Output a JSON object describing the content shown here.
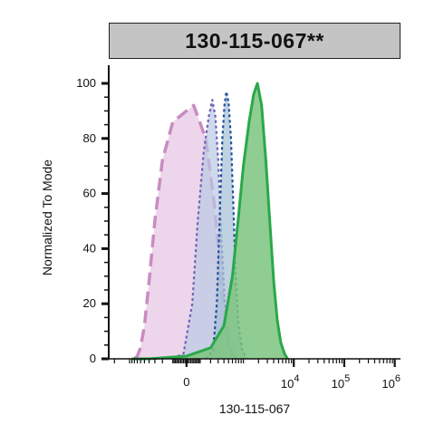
{
  "title": "130-115-067**",
  "chart_data": {
    "type": "area",
    "xlabel": "130-115-067",
    "ylabel": "Normalized To Mode",
    "ylim": [
      0,
      100
    ],
    "yticks": [
      0,
      20,
      40,
      60,
      80,
      100
    ],
    "x_scale": "biexponential",
    "xticks": [
      {
        "value": 0,
        "label": "0"
      },
      {
        "value": 10000,
        "base": "10",
        "exp": "4"
      },
      {
        "value": 100000,
        "base": "10",
        "exp": "5"
      },
      {
        "value": 1000000,
        "base": "10",
        "exp": "6"
      }
    ],
    "grid": false,
    "series": [
      {
        "style": "filled-dashed",
        "fill": "#e6c5e2",
        "stroke": "#c98bc2",
        "dash": "long",
        "points": [
          [
            -800,
            0
          ],
          [
            -700,
            1
          ],
          [
            -600,
            4
          ],
          [
            -500,
            12
          ],
          [
            -400,
            28
          ],
          [
            -300,
            50
          ],
          [
            -200,
            72
          ],
          [
            -100,
            86
          ],
          [
            0,
            90
          ],
          [
            50,
            92
          ],
          [
            150,
            80
          ],
          [
            250,
            55
          ],
          [
            350,
            28
          ],
          [
            450,
            10
          ],
          [
            600,
            2
          ],
          [
            800,
            0
          ]
        ]
      },
      {
        "style": "filled-dotted",
        "fill": "#b9c9e2",
        "stroke": "#6f62b5",
        "dash": "dot",
        "points": [
          [
            -100,
            0
          ],
          [
            -20,
            2
          ],
          [
            40,
            20
          ],
          [
            80,
            50
          ],
          [
            130,
            75
          ],
          [
            180,
            88
          ],
          [
            220,
            94
          ],
          [
            260,
            88
          ],
          [
            300,
            72
          ],
          [
            350,
            45
          ],
          [
            420,
            20
          ],
          [
            500,
            6
          ],
          [
            600,
            1
          ],
          [
            700,
            0
          ]
        ]
      },
      {
        "style": "filled-dotted",
        "fill": "#a4bfd6",
        "stroke": "#1e4f9a",
        "dash": "dot",
        "points": [
          [
            150,
            0
          ],
          [
            230,
            3
          ],
          [
            280,
            20
          ],
          [
            330,
            55
          ],
          [
            370,
            80
          ],
          [
            410,
            92
          ],
          [
            450,
            97
          ],
          [
            500,
            93
          ],
          [
            560,
            80
          ],
          [
            620,
            58
          ],
          [
            700,
            30
          ],
          [
            800,
            12
          ],
          [
            950,
            3
          ],
          [
            1150,
            0
          ]
        ]
      },
      {
        "style": "filled-solid",
        "fill": "#7cc47f",
        "stroke": "#2aa84a",
        "dash": "solid",
        "points": [
          [
            -900,
            0
          ],
          [
            -400,
            0
          ],
          [
            0,
            1
          ],
          [
            200,
            4
          ],
          [
            400,
            12
          ],
          [
            600,
            30
          ],
          [
            800,
            52
          ],
          [
            1000,
            70
          ],
          [
            1300,
            86
          ],
          [
            1600,
            96
          ],
          [
            1900,
            100
          ],
          [
            2300,
            92
          ],
          [
            2800,
            72
          ],
          [
            3400,
            48
          ],
          [
            4000,
            28
          ],
          [
            4700,
            14
          ],
          [
            5500,
            6
          ],
          [
            6500,
            2
          ],
          [
            7500,
            0
          ]
        ]
      }
    ]
  }
}
